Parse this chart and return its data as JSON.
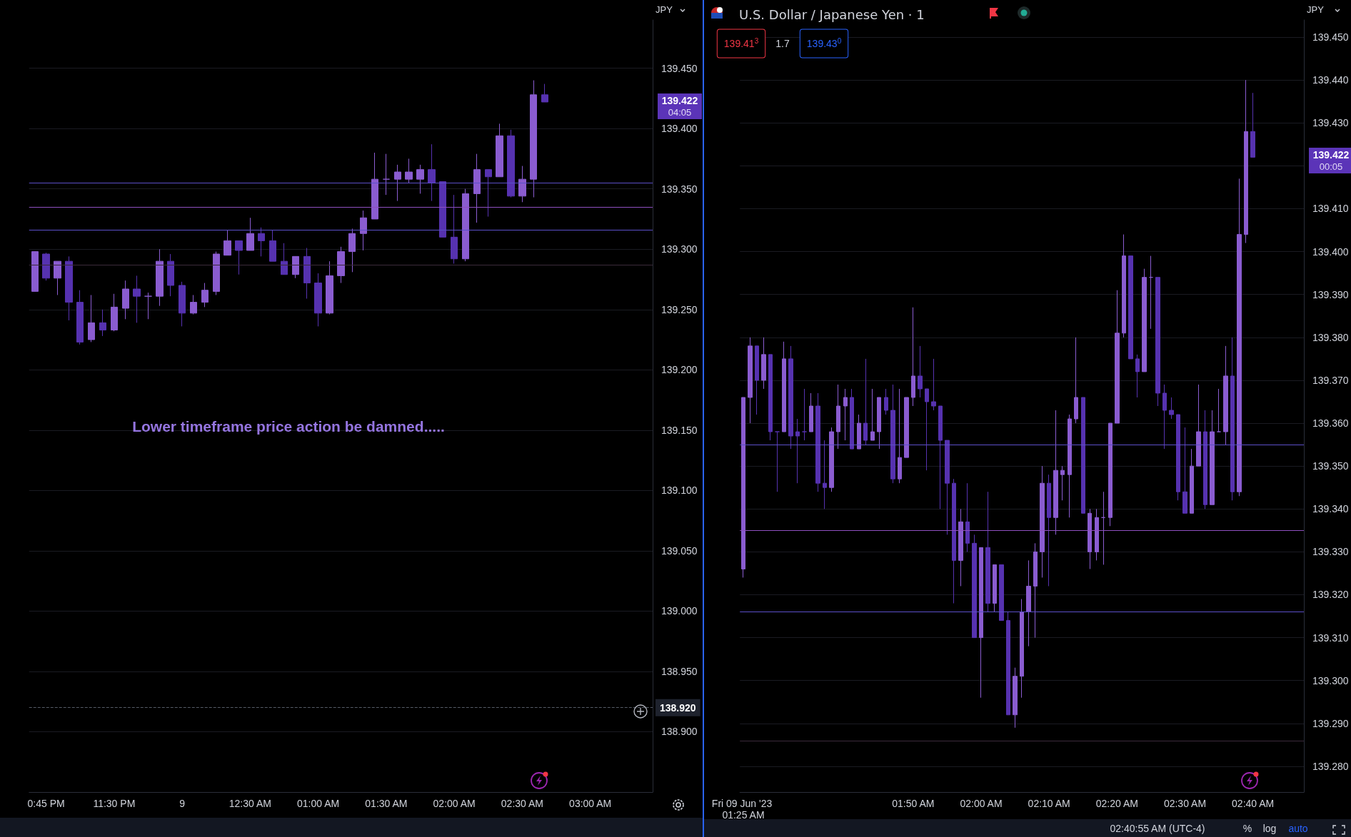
{
  "chart_data": [
    {
      "type": "candlestick",
      "ylabel": "JPY",
      "grid": "y",
      "categories": [
        null,
        "0:45 PM",
        null,
        null,
        null,
        null,
        null,
        "11:30 PM",
        null,
        null,
        null,
        null,
        null,
        "9",
        null,
        null,
        null,
        null,
        null,
        "12:30 AM",
        null,
        null,
        null,
        null,
        null,
        "01:00 AM",
        null,
        null,
        null,
        null,
        null,
        "01:30 AM",
        null,
        null,
        null,
        null,
        null,
        "02:00 AM",
        null,
        null,
        null,
        null,
        null,
        "02:30 AM",
        null,
        null,
        null,
        null,
        null,
        "03:00 AM",
        null,
        null,
        null,
        null,
        null
      ],
      "ohlc": [
        [
          139.265,
          139.298,
          139.265,
          139.298
        ],
        [
          139.296,
          139.297,
          139.274,
          139.276
        ],
        [
          139.276,
          139.29,
          139.262,
          139.29
        ],
        [
          139.29,
          139.294,
          139.241,
          139.256
        ],
        [
          139.256,
          139.266,
          139.221,
          139.223
        ],
        [
          139.225,
          139.262,
          139.223,
          139.239
        ],
        [
          139.239,
          139.25,
          139.228,
          139.233
        ],
        [
          139.233,
          139.263,
          139.232,
          139.252
        ],
        [
          139.251,
          139.274,
          139.242,
          139.267
        ],
        [
          139.267,
          139.278,
          139.239,
          139.261
        ],
        [
          139.261,
          139.264,
          139.242,
          139.261
        ],
        [
          139.261,
          139.3,
          139.253,
          139.29
        ],
        [
          139.29,
          139.296,
          139.261,
          139.27
        ],
        [
          139.27,
          139.273,
          139.236,
          139.247
        ],
        [
          139.247,
          139.262,
          139.246,
          139.256
        ],
        [
          139.256,
          139.272,
          139.252,
          139.266
        ],
        [
          139.265,
          139.298,
          139.262,
          139.296
        ],
        [
          139.295,
          139.316,
          139.295,
          139.307
        ],
        [
          139.307,
          139.307,
          139.279,
          139.299
        ],
        [
          139.299,
          139.326,
          139.299,
          139.313
        ],
        [
          139.313,
          139.318,
          139.294,
          139.307
        ],
        [
          139.307,
          139.316,
          139.29,
          139.29
        ],
        [
          139.29,
          139.305,
          139.279,
          139.279
        ],
        [
          139.279,
          139.294,
          139.276,
          139.294
        ],
        [
          139.294,
          139.301,
          139.259,
          139.272
        ],
        [
          139.272,
          139.28,
          139.236,
          139.247
        ],
        [
          139.247,
          139.29,
          139.246,
          139.278
        ],
        [
          139.278,
          139.302,
          139.272,
          139.298
        ],
        [
          139.298,
          139.317,
          139.281,
          139.313
        ],
        [
          139.313,
          139.332,
          139.299,
          139.326
        ],
        [
          139.325,
          139.38,
          139.325,
          139.358
        ],
        [
          139.358,
          139.379,
          139.345,
          139.358
        ],
        [
          139.358,
          139.37,
          139.34,
          139.364
        ],
        [
          139.358,
          139.375,
          139.355,
          139.364
        ],
        [
          139.358,
          139.37,
          139.346,
          139.366
        ],
        [
          139.366,
          139.387,
          139.34,
          139.355
        ],
        [
          139.356,
          139.356,
          139.31,
          139.31
        ],
        [
          139.31,
          139.345,
          139.288,
          139.292
        ],
        [
          139.292,
          139.35,
          139.29,
          139.346
        ],
        [
          139.346,
          139.379,
          139.322,
          139.366
        ],
        [
          139.366,
          139.366,
          139.327,
          139.36
        ],
        [
          139.36,
          139.404,
          139.36,
          139.394
        ],
        [
          139.394,
          139.399,
          139.343,
          139.344
        ],
        [
          139.344,
          139.369,
          139.339,
          139.358
        ],
        [
          139.358,
          139.44,
          139.343,
          139.428
        ],
        [
          139.428,
          139.437,
          139.422,
          139.422
        ],
        null,
        null,
        null,
        null,
        null,
        null,
        null,
        null,
        null
      ],
      "colors": [
        "#8a5cd0",
        "#5632b0",
        "#8a5cd0",
        "#5632b0",
        "#5632b0",
        "#8a5cd0",
        "#5632b0",
        "#8a5cd0",
        "#8a5cd0",
        "#5632b0",
        "#8a5cd0",
        "#8a5cd0",
        "#5632b0",
        "#5632b0",
        "#8a5cd0",
        "#8a5cd0",
        "#8a5cd0",
        "#8a5cd0",
        "#5632b0",
        "#8a5cd0",
        "#5632b0",
        "#5632b0",
        "#5632b0",
        "#8a5cd0",
        "#5632b0",
        "#5632b0",
        "#8a5cd0",
        "#8a5cd0",
        "#8a5cd0",
        "#8a5cd0",
        "#8a5cd0",
        "#8a5cd0",
        "#8a5cd0",
        "#8a5cd0",
        "#8a5cd0",
        "#5632b0",
        "#5632b0",
        "#5632b0",
        "#8a5cd0",
        "#8a5cd0",
        "#5632b0",
        "#8a5cd0",
        "#5632b0",
        "#8a5cd0",
        "#8a5cd0",
        "#5632b0",
        null,
        null,
        null,
        null,
        null,
        null,
        null,
        null,
        null
      ],
      "ylim": [
        138.85,
        139.49
      ],
      "yticks": [
        {
          "value": 138.9,
          "label": "138.900"
        },
        {
          "value": 138.95,
          "label": "138.950"
        },
        {
          "value": 139.0,
          "label": "139.000"
        },
        {
          "value": 139.05,
          "label": "139.050"
        },
        {
          "value": 139.1,
          "label": "139.100"
        },
        {
          "value": 139.15,
          "label": "139.150"
        },
        {
          "value": 139.2,
          "label": "139.200"
        },
        {
          "value": 139.25,
          "label": "139.250"
        },
        {
          "value": 139.3,
          "label": "139.300"
        },
        {
          "value": 139.35,
          "label": "139.350"
        },
        {
          "value": 139.4,
          "label": "139.400"
        },
        {
          "value": 139.45,
          "label": "139.450"
        }
      ],
      "ref_lines": [
        {
          "axis": "y",
          "value": 139.355,
          "color": "#5b4fc9"
        },
        {
          "axis": "y",
          "value": 139.335,
          "color": "#8e4fbf"
        },
        {
          "axis": "y",
          "value": 139.316,
          "color": "#5b4fc9"
        },
        {
          "axis": "y",
          "value": 139.287,
          "color": "#3b2a3a"
        },
        {
          "axis": "y",
          "value": 138.92,
          "label": "138.920",
          "color": "#555b66",
          "line_style": "dashed"
        }
      ],
      "annotations": [
        "Lower timeframe price action be damned.....",
        "139.422",
        "04:05"
      ]
    },
    {
      "type": "candlestick",
      "title": "U.S. Dollar / Japanese Yen · 1",
      "ylabel": "JPY",
      "grid": "y",
      "categories": [
        "Fri 09 Jun '23 01:25 AM",
        null,
        null,
        null,
        null,
        null,
        null,
        null,
        null,
        null,
        null,
        null,
        null,
        null,
        null,
        null,
        null,
        null,
        null,
        null,
        null,
        null,
        null,
        null,
        null,
        "01:50 AM",
        null,
        null,
        null,
        null,
        null,
        null,
        null,
        null,
        null,
        "02:00 AM",
        null,
        null,
        null,
        null,
        null,
        null,
        null,
        null,
        null,
        "02:10 AM",
        null,
        null,
        null,
        null,
        null,
        null,
        null,
        null,
        null,
        "02:20 AM",
        null,
        null,
        null,
        null,
        null,
        null,
        null,
        null,
        null,
        "02:30 AM",
        null,
        null,
        null,
        null,
        null,
        null,
        null,
        null,
        null,
        "02:40 AM",
        null,
        null,
        null,
        null,
        null,
        null,
        null
      ],
      "ohlc": [
        [
          139.326,
          139.366,
          139.324,
          139.366
        ],
        [
          139.366,
          139.38,
          139.36,
          139.378
        ],
        [
          139.378,
          139.378,
          139.362,
          139.37
        ],
        [
          139.37,
          139.38,
          139.368,
          139.376
        ],
        [
          139.376,
          139.376,
          139.356,
          139.358
        ],
        [
          139.358,
          139.358,
          139.344,
          139.358
        ],
        [
          139.358,
          139.379,
          139.358,
          139.375
        ],
        [
          139.375,
          139.378,
          139.354,
          139.357
        ],
        [
          139.358,
          139.361,
          139.346,
          139.357
        ],
        [
          139.358,
          139.368,
          139.356,
          139.358
        ],
        [
          139.358,
          139.367,
          139.358,
          139.364
        ],
        [
          139.364,
          139.367,
          139.344,
          139.346
        ],
        [
          139.346,
          139.356,
          139.34,
          139.345
        ],
        [
          139.345,
          139.359,
          139.344,
          139.358
        ],
        [
          139.358,
          139.369,
          139.354,
          139.364
        ],
        [
          139.364,
          139.368,
          139.356,
          139.366
        ],
        [
          139.366,
          139.368,
          139.354,
          139.354
        ],
        [
          139.354,
          139.362,
          139.354,
          139.36
        ],
        [
          139.36,
          139.375,
          139.355,
          139.356
        ],
        [
          139.356,
          139.368,
          139.356,
          139.358
        ],
        [
          139.358,
          139.366,
          139.354,
          139.366
        ],
        [
          139.366,
          139.368,
          139.362,
          139.363
        ],
        [
          139.363,
          139.369,
          139.346,
          139.347
        ],
        [
          139.347,
          139.368,
          139.346,
          139.352
        ],
        [
          139.352,
          139.366,
          139.352,
          139.366
        ],
        [
          139.366,
          139.387,
          139.364,
          139.371
        ],
        [
          139.371,
          139.378,
          139.366,
          139.368
        ],
        [
          139.368,
          139.368,
          139.349,
          139.365
        ],
        [
          139.365,
          139.375,
          139.363,
          139.364
        ],
        [
          139.364,
          139.364,
          139.34,
          139.356
        ],
        [
          139.356,
          139.356,
          139.334,
          139.346
        ],
        [
          139.346,
          139.347,
          139.318,
          139.328
        ],
        [
          139.328,
          139.34,
          139.322,
          139.337
        ],
        [
          139.337,
          139.346,
          139.33,
          139.332
        ],
        [
          139.332,
          139.334,
          139.31,
          139.31
        ],
        [
          139.31,
          139.331,
          139.296,
          139.331
        ],
        [
          139.331,
          139.344,
          139.316,
          139.318
        ],
        [
          139.318,
          139.327,
          139.316,
          139.327
        ],
        [
          139.327,
          139.327,
          139.314,
          139.314
        ],
        [
          139.314,
          139.316,
          139.292,
          139.292
        ],
        [
          139.292,
          139.303,
          139.289,
          139.301
        ],
        [
          139.301,
          139.319,
          139.296,
          139.316
        ],
        [
          139.316,
          139.328,
          139.308,
          139.322
        ],
        [
          139.322,
          139.332,
          139.31,
          139.33
        ],
        [
          139.33,
          139.35,
          139.324,
          139.346
        ],
        [
          139.346,
          139.348,
          139.322,
          139.338
        ],
        [
          139.338,
          139.363,
          139.334,
          139.349
        ],
        [
          139.348,
          139.35,
          139.342,
          139.349
        ],
        [
          139.348,
          139.362,
          139.338,
          139.361
        ],
        [
          139.361,
          139.38,
          139.36,
          139.366
        ],
        [
          139.366,
          139.366,
          139.339,
          139.339
        ],
        [
          139.33,
          139.34,
          139.326,
          139.339
        ],
        [
          139.33,
          139.34,
          139.328,
          139.338
        ],
        [
          139.338,
          139.344,
          139.327,
          139.338
        ],
        [
          139.338,
          139.36,
          139.336,
          139.36
        ],
        [
          139.36,
          139.391,
          139.36,
          139.381
        ],
        [
          139.381,
          139.404,
          139.38,
          139.399
        ],
        [
          139.399,
          139.399,
          139.375,
          139.375
        ],
        [
          139.375,
          139.376,
          139.366,
          139.372
        ],
        [
          139.372,
          139.396,
          139.372,
          139.394
        ],
        [
          139.394,
          139.399,
          139.382,
          139.394
        ],
        [
          139.394,
          139.394,
          139.364,
          139.367
        ],
        [
          139.367,
          139.369,
          139.354,
          139.363
        ],
        [
          139.363,
          139.366,
          139.361,
          139.362
        ],
        [
          139.362,
          139.362,
          139.342,
          139.344
        ],
        [
          139.344,
          139.359,
          139.339,
          139.339
        ],
        [
          139.339,
          139.354,
          139.339,
          139.35
        ],
        [
          139.35,
          139.369,
          139.35,
          139.358
        ],
        [
          139.358,
          139.363,
          139.34,
          139.341
        ],
        [
          139.341,
          139.363,
          139.341,
          139.358
        ],
        [
          139.358,
          139.368,
          139.358,
          139.358
        ],
        [
          139.358,
          139.378,
          139.355,
          139.371
        ],
        [
          139.371,
          139.38,
          139.342,
          139.344
        ],
        [
          139.344,
          139.417,
          139.343,
          139.404
        ],
        [
          139.404,
          139.44,
          139.402,
          139.428
        ],
        [
          139.428,
          139.437,
          139.422,
          139.422
        ],
        null,
        null,
        null,
        null,
        null,
        null,
        null
      ],
      "colors": [
        "#8a5cd0",
        "#8a5cd0",
        "#5632b0",
        "#8a5cd0",
        "#5632b0",
        "#5632b0",
        "#8a5cd0",
        "#5632b0",
        "#5632b0",
        "#5632b0",
        "#8a5cd0",
        "#5632b0",
        "#5632b0",
        "#8a5cd0",
        "#8a5cd0",
        "#8a5cd0",
        "#5632b0",
        "#8a5cd0",
        "#5632b0",
        "#8a5cd0",
        "#8a5cd0",
        "#5632b0",
        "#5632b0",
        "#8a5cd0",
        "#8a5cd0",
        "#8a5cd0",
        "#5632b0",
        "#5632b0",
        "#5632b0",
        "#5632b0",
        "#5632b0",
        "#5632b0",
        "#8a5cd0",
        "#5632b0",
        "#5632b0",
        "#8a5cd0",
        "#5632b0",
        "#8a5cd0",
        "#5632b0",
        "#5632b0",
        "#8a5cd0",
        "#8a5cd0",
        "#8a5cd0",
        "#8a5cd0",
        "#8a5cd0",
        "#5632b0",
        "#8a5cd0",
        "#8a5cd0",
        "#8a5cd0",
        "#8a5cd0",
        "#5632b0",
        "#8a5cd0",
        "#8a5cd0",
        "#8a5cd0",
        "#8a5cd0",
        "#8a5cd0",
        "#8a5cd0",
        "#5632b0",
        "#5632b0",
        "#8a5cd0",
        "#8a5cd0",
        "#5632b0",
        "#5632b0",
        "#5632b0",
        "#5632b0",
        "#5632b0",
        "#8a5cd0",
        "#8a5cd0",
        "#5632b0",
        "#8a5cd0",
        "#8a5cd0",
        "#8a5cd0",
        "#5632b0",
        "#8a5cd0",
        "#8a5cd0",
        "#5632b0",
        null,
        null,
        null,
        null,
        null,
        null,
        null
      ],
      "ylim": [
        139.274,
        139.454
      ],
      "yticks": [
        {
          "value": 139.28,
          "label": "139.280"
        },
        {
          "value": 139.29,
          "label": "139.290"
        },
        {
          "value": 139.3,
          "label": "139.300"
        },
        {
          "value": 139.31,
          "label": "139.310"
        },
        {
          "value": 139.32,
          "label": "139.320"
        },
        {
          "value": 139.33,
          "label": "139.330"
        },
        {
          "value": 139.34,
          "label": "139.340"
        },
        {
          "value": 139.35,
          "label": "139.350"
        },
        {
          "value": 139.36,
          "label": "139.360"
        },
        {
          "value": 139.37,
          "label": "139.370"
        },
        {
          "value": 139.38,
          "label": "139.380"
        },
        {
          "value": 139.39,
          "label": "139.390"
        },
        {
          "value": 139.4,
          "label": "139.400"
        },
        {
          "value": 139.41,
          "label": "139.410"
        },
        {
          "value": 139.42,
          "label": null
        },
        {
          "value": 139.43,
          "label": "139.430"
        },
        {
          "value": 139.44,
          "label": "139.440"
        },
        {
          "value": 139.45,
          "label": "139.450"
        }
      ],
      "ref_lines": [
        {
          "axis": "y",
          "value": 139.355,
          "color": "#5b4fc9"
        },
        {
          "axis": "y",
          "value": 139.335,
          "color": "#8e4fbf"
        },
        {
          "axis": "y",
          "value": 139.316,
          "color": "#5b4fc9"
        },
        {
          "axis": "y",
          "value": 139.286,
          "color": "#3b2a3a"
        }
      ],
      "annotations": [
        "139.41$^{3}$",
        "1.7",
        "139.43$^{0}$",
        "139.422",
        "00:05",
        "02:40:55 AM (UTC-4)",
        "%",
        "log",
        "auto"
      ]
    }
  ]
}
